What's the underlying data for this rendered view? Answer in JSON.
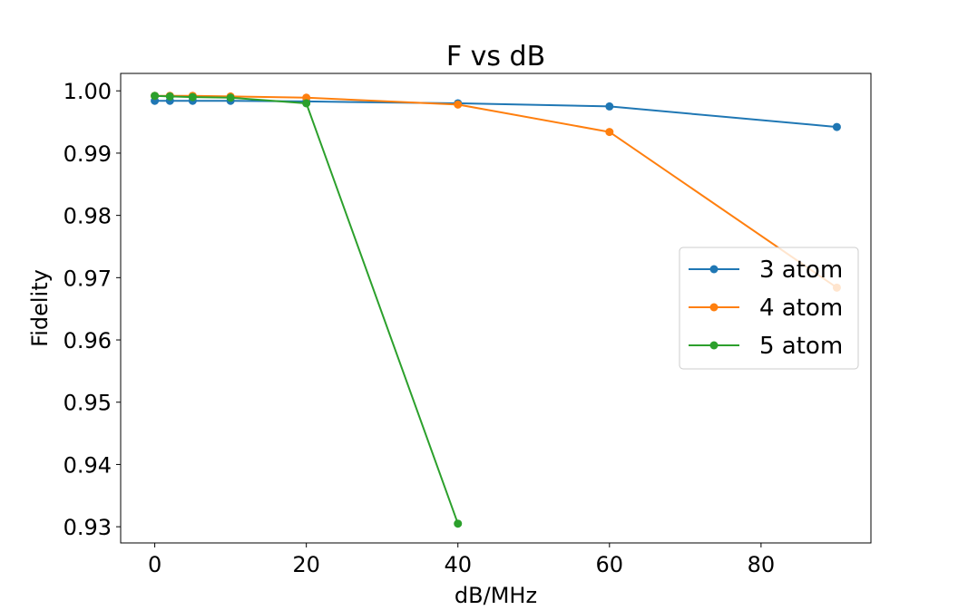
{
  "chart_data": {
    "type": "line",
    "title": "F vs dB",
    "xlabel": "dB/MHz",
    "ylabel": "Fidelity",
    "xlim": [
      -4.5,
      94.5
    ],
    "ylim": [
      0.9274,
      1.0028
    ],
    "xticks": [
      0,
      20,
      40,
      60,
      80
    ],
    "xtick_labels": [
      "0",
      "20",
      "40",
      "60",
      "80"
    ],
    "yticks": [
      0.93,
      0.94,
      0.95,
      0.96,
      0.97,
      0.98,
      0.99,
      1.0
    ],
    "ytick_labels": [
      "0.93",
      "0.94",
      "0.95",
      "0.96",
      "0.97",
      "0.98",
      "0.99",
      "1.00"
    ],
    "grid": false,
    "legend_position": "center-right",
    "series": [
      {
        "name": "3 atom",
        "color": "#1f77b4",
        "x": [
          0,
          2,
          5,
          10,
          20,
          40,
          60,
          90
        ],
        "y": [
          0.9984,
          0.9984,
          0.9984,
          0.9984,
          0.9983,
          0.998,
          0.9975,
          0.9942
        ]
      },
      {
        "name": "4 atom",
        "color": "#ff7f0e",
        "x": [
          0,
          2,
          5,
          10,
          20,
          40,
          60,
          90
        ],
        "y": [
          0.9992,
          0.9992,
          0.9992,
          0.9991,
          0.9989,
          0.9978,
          0.9934,
          0.9684
        ]
      },
      {
        "name": "5 atom",
        "color": "#2ca02c",
        "x": [
          0,
          2,
          5,
          10,
          20,
          40
        ],
        "y": [
          0.9992,
          0.9991,
          0.999,
          0.9989,
          0.998,
          0.9305
        ]
      }
    ]
  }
}
